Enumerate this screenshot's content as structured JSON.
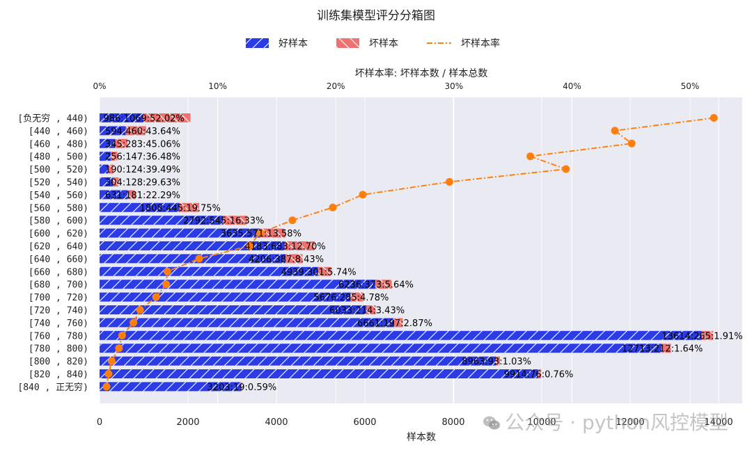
{
  "chart_data": {
    "type": "bar",
    "title": "训练集模型评分分箱图",
    "xlabel": "样本数",
    "x2label": "坏样本率: 坏样本数 / 样本总数",
    "xlim": [
      0,
      14500
    ],
    "x_ticks": [
      0,
      2000,
      4000,
      6000,
      8000,
      10000,
      12000,
      14000
    ],
    "x2lim": [
      0,
      0.5438
    ],
    "x2_ticks": [
      "0%",
      "10%",
      "20%",
      "30%",
      "40%",
      "50%"
    ],
    "grid": true,
    "legend_placement": "top-center",
    "legend": [
      "好样本",
      "坏样本",
      "坏样本率"
    ],
    "colors": {
      "good": "#2b3ce6",
      "bad": "#f07270",
      "rate": "#ff7f0e",
      "plot_bg": "#eaeaf2"
    },
    "categories": [
      "[负无穷 , 440)",
      "[440 , 460)",
      "[460 , 480)",
      "[480 , 500)",
      "[500 , 520)",
      "[520 , 540)",
      "[540 , 560)",
      "[560 , 580)",
      "[580 , 600)",
      "[600 , 620)",
      "[620 , 640)",
      "[640 , 660)",
      "[660 , 680)",
      "[680 , 700)",
      "[700 , 720)",
      "[720 , 740)",
      "[740 , 760)",
      "[760 , 780)",
      "[780 , 800)",
      "[800 , 820)",
      "[820 , 840)",
      "[840 , 正无穷)"
    ],
    "series": [
      {
        "name": "好样本",
        "values": [
          986,
          594,
          345,
          256,
          190,
          304,
          631,
          1808,
          2792,
          3635,
          4183,
          4206,
          4939,
          6236,
          5676,
          6033,
          6661,
          13614,
          12713,
          8963,
          9914,
          3203
        ]
      },
      {
        "name": "坏样本",
        "values": [
          1069,
          460,
          283,
          147,
          124,
          128,
          181,
          445,
          545,
          571,
          683,
          387,
          301,
          373,
          285,
          214,
          197,
          265,
          212,
          93,
          76,
          19
        ]
      },
      {
        "name": "坏样本率",
        "values": [
          0.5202,
          0.4364,
          0.4506,
          0.3648,
          0.3949,
          0.2963,
          0.2229,
          0.1975,
          0.1633,
          0.1358,
          0.127,
          0.0843,
          0.0574,
          0.0564,
          0.0478,
          0.0343,
          0.0287,
          0.0191,
          0.0164,
          0.0103,
          0.0076,
          0.0059
        ]
      }
    ],
    "data_labels": [
      "986:1069:52.02%",
      "594:460:43.64%",
      "345:283:45.06%",
      "256:147:36.48%",
      "190:124:39.49%",
      "304:128:29.63%",
      "631:181:22.29%",
      "1808:445:19.75%",
      "2792:545:16.33%",
      "3635:571:13.58%",
      "4183:683:12.70%",
      "4206:387:8.43%",
      "4939:301:5.74%",
      "6236:373:5.64%",
      "5676:285:4.78%",
      "6033:214:3.43%",
      "6661:197:2.87%",
      "13614:265:1.91%",
      "12713:212:1.64%",
      "8963:93:1.03%",
      "9914:76:0.76%",
      "3203:19:0.59%"
    ]
  },
  "watermark": {
    "text": "公众号 · python风控模型",
    "icon": "wechat-icon"
  }
}
